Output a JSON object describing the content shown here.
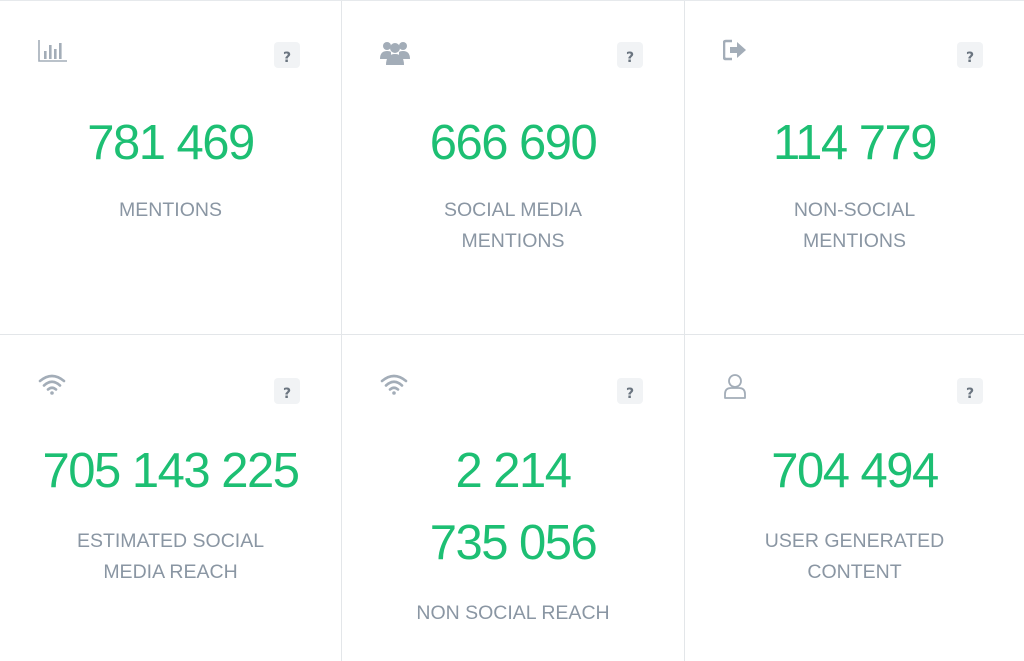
{
  "cards": [
    {
      "icon": "bar-chart-icon",
      "value": "781 469",
      "label": "MENTIONS",
      "help": "?"
    },
    {
      "icon": "users-group-icon",
      "value": "666 690",
      "label": "SOCIAL MEDIA MENTIONS",
      "help": "?"
    },
    {
      "icon": "sign-out-icon",
      "value": "114 779",
      "label": "NON-SOCIAL MENTIONS",
      "help": "?"
    },
    {
      "icon": "wifi-icon",
      "value": "705 143 225",
      "label": "ESTIMATED SOCIAL MEDIA REACH",
      "help": "?"
    },
    {
      "icon": "wifi-icon",
      "value": "2 214 735 056",
      "label": "NON SOCIAL REACH",
      "help": "?"
    },
    {
      "icon": "user-outline-icon",
      "value": "704 494",
      "label": "USER GENERATED CONTENT",
      "help": "?"
    }
  ],
  "colors": {
    "value": "#1dbf73",
    "label": "#8a96a3",
    "icon": "#a3adb8",
    "border": "#e3e6e9"
  }
}
